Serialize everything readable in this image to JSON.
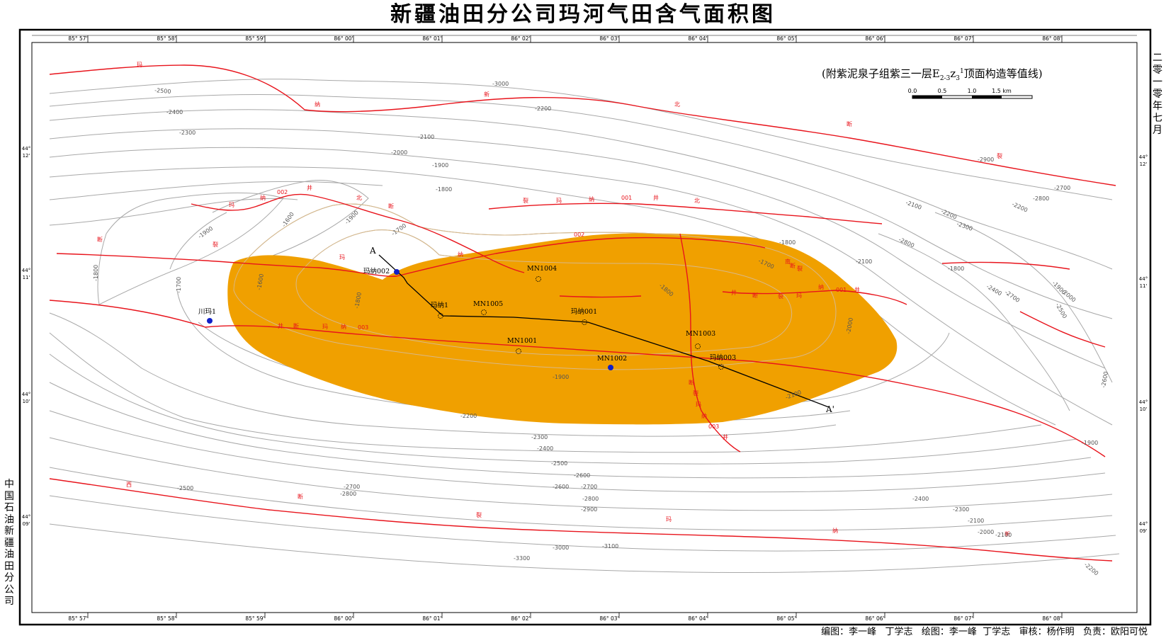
{
  "map": {
    "title": "新疆油田分公司玛河气田含气面积图",
    "subtitle_prefix": "(附紫泥泉子组紫三一层E",
    "subtitle_sub1": "2-3",
    "subtitle_z": "z",
    "subtitle_sub2": "3",
    "subtitle_sup": "1",
    "subtitle_suffix": "顶面构造等值线)",
    "date_vertical": "二零一零年七月",
    "org_vertical": "中国石油新疆油田分公司",
    "credits": "编图：李一峰   丁学志   绘图：李一峰  丁学志   审核：杨作明   负责：欧阳可悦",
    "scale_labels": [
      "0.0",
      "0.5",
      "1.0",
      "1.5 km"
    ],
    "longitude_labels": [
      "85° 57'",
      "85° 58'",
      "85° 59'",
      "86° 00'",
      "86° 01'",
      "86° 02'",
      "86° 03'",
      "86° 04'",
      "86° 05'",
      "86° 06'",
      "86° 07'",
      "86° 08'"
    ],
    "latitude_labels": [
      "44° 12'",
      "44° 11'",
      "44° 10'",
      "44° 09'"
    ],
    "colors": {
      "gas_area": "#F0A000",
      "fault": "#E8141C",
      "contour": "#A8A8A8",
      "well_producing": "#1020C8",
      "frame": "#000000"
    },
    "wells": [
      {
        "name": "玛纳002",
        "type": "solid"
      },
      {
        "name": "川玛1",
        "type": "solid"
      },
      {
        "name": "玛纳1",
        "type": "open"
      },
      {
        "name": "MN1005",
        "type": "open"
      },
      {
        "name": "MN1004",
        "type": "open"
      },
      {
        "name": "玛纳001",
        "type": "open"
      },
      {
        "name": "MN1001",
        "type": "open"
      },
      {
        "name": "MN1002",
        "type": "solid"
      },
      {
        "name": "MN1003",
        "type": "open"
      },
      {
        "name": "玛纳003",
        "type": "open"
      }
    ],
    "section_labels": [
      "A",
      "A'"
    ],
    "contour_labels": [
      "-3000",
      "-2500",
      "-2400",
      "-2300",
      "-2200",
      "-2100",
      "-2000",
      "-1900",
      "-1800",
      "-1700",
      "-1600",
      "-1900",
      "-1800",
      "-1700",
      "-1600",
      "-1800",
      "-1900",
      "-1800",
      "-1700",
      "-1800",
      "-1900",
      "-2000",
      "-2100",
      "-2200",
      "-2300",
      "-2400",
      "-2500",
      "-2600",
      "-2700",
      "-2800",
      "-2900",
      "-3000",
      "-3100",
      "-3300",
      "-2800",
      "-2700",
      "-2600",
      "-2500",
      "-2400",
      "-2300",
      "-2100",
      "-2000",
      "-2100",
      "-2200",
      "-2200",
      "-2700",
      "-2800",
      "-2900",
      "-2800",
      "-2700",
      "-2100",
      "-2200",
      "-2300",
      "-2400",
      "-2500",
      "-2600",
      "-1900",
      "-1800",
      "-1900",
      "-2100",
      "-2000"
    ],
    "fault_labels": [
      "玛",
      "纳",
      "新",
      "北",
      "断",
      "裂",
      "玛",
      "纳",
      "002",
      "井",
      "北",
      "断",
      "裂",
      "玛",
      "纳",
      "001",
      "井",
      "北",
      "断",
      "裂",
      "玛",
      "纳",
      "002",
      "井",
      "断",
      "玛",
      "纳",
      "003",
      "井",
      "断",
      "裂",
      "玛",
      "纳",
      "001",
      "井",
      "断",
      "裂",
      "玛",
      "纳",
      "003",
      "井",
      "西",
      "断",
      "裂",
      "玛",
      "纳",
      "新",
      "南",
      "断",
      "裂"
    ]
  }
}
